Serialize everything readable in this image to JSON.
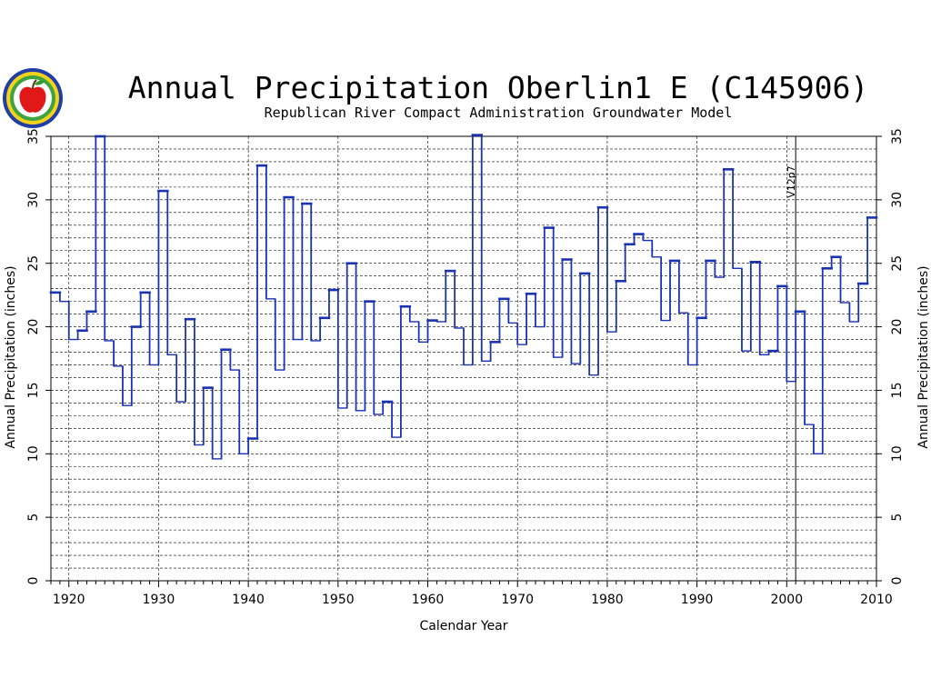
{
  "colors": {
    "series": "#1a33b3",
    "axis": "#000000",
    "grid": "#000000",
    "background": "#ffffff"
  },
  "logo": {
    "name": "apple-seal-logo"
  },
  "chart_data": {
    "type": "line",
    "step": true,
    "title": "Annual Precipitation Oberlin1 E (C145906)",
    "subtitle": "Republican River Compact Administration Groundwater Model",
    "xlabel": "Calendar Year",
    "ylabel_left": "Annual Precipitation (inches)",
    "ylabel_right": "Annual Precipitation (inches)",
    "xlim": [
      1918,
      2010
    ],
    "ylim": [
      0,
      35
    ],
    "x_ticks": [
      1920,
      1930,
      1940,
      1950,
      1960,
      1970,
      1980,
      1990,
      2000,
      2010
    ],
    "x_tick_labels": [
      "1920",
      "1930",
      "1940",
      "1950",
      "1960",
      "1970",
      "1980",
      "1990",
      "2000",
      "2010"
    ],
    "y_ticks": [
      0,
      5,
      10,
      15,
      20,
      25,
      30,
      35
    ],
    "y_tick_labels": [
      "0",
      "5",
      "10",
      "15",
      "20",
      "25",
      "30",
      "35"
    ],
    "grid": {
      "horizontal_step": 1,
      "vertical_step": 10,
      "style": "dashed"
    },
    "marker_line": {
      "x": 2001,
      "label": "V12p7"
    },
    "x": [
      1918,
      1919,
      1920,
      1921,
      1922,
      1923,
      1924,
      1925,
      1926,
      1927,
      1928,
      1929,
      1930,
      1931,
      1932,
      1933,
      1934,
      1935,
      1936,
      1937,
      1938,
      1939,
      1940,
      1941,
      1942,
      1943,
      1944,
      1945,
      1946,
      1947,
      1948,
      1949,
      1950,
      1951,
      1952,
      1953,
      1954,
      1955,
      1956,
      1957,
      1958,
      1959,
      1960,
      1961,
      1962,
      1963,
      1964,
      1965,
      1966,
      1967,
      1968,
      1969,
      1970,
      1971,
      1972,
      1973,
      1974,
      1975,
      1976,
      1977,
      1978,
      1979,
      1980,
      1981,
      1982,
      1983,
      1984,
      1985,
      1986,
      1987,
      1988,
      1989,
      1990,
      1991,
      1992,
      1993,
      1994,
      1995,
      1996,
      1997,
      1998,
      1999,
      2000,
      2001,
      2002,
      2003,
      2004,
      2005,
      2006,
      2007,
      2008,
      2009
    ],
    "series": [
      {
        "values": [
          22.7,
          22.0,
          19.0,
          19.7,
          21.2,
          35.0,
          18.9,
          16.9,
          13.8,
          20.0,
          22.7,
          17.0,
          30.7,
          17.8,
          14.1,
          20.6,
          10.7,
          15.2,
          9.6,
          18.2,
          16.6,
          10.0,
          11.2,
          32.7,
          22.2,
          16.6,
          30.2,
          19.0,
          29.7,
          18.9,
          20.7,
          22.9,
          13.6,
          25.0,
          13.4,
          22.0,
          13.1,
          14.1,
          11.3,
          21.6,
          20.4,
          18.8,
          20.5,
          20.4,
          24.4,
          19.9,
          17.0,
          35.1,
          17.3,
          18.8,
          22.2,
          20.3,
          18.6,
          22.6,
          20.0,
          27.8,
          17.6,
          25.3,
          17.1,
          24.2,
          16.2,
          29.4,
          19.6,
          23.6,
          26.5,
          27.3,
          26.8,
          25.5,
          20.5,
          25.2,
          21.1,
          17.0,
          20.7,
          25.2,
          23.9,
          32.4,
          24.6,
          18.1,
          25.1,
          17.8,
          18.1,
          23.2,
          15.7,
          21.2,
          12.3,
          10.0,
          24.6,
          25.5,
          21.9,
          20.4,
          23.4,
          28.6
        ]
      }
    ]
  }
}
